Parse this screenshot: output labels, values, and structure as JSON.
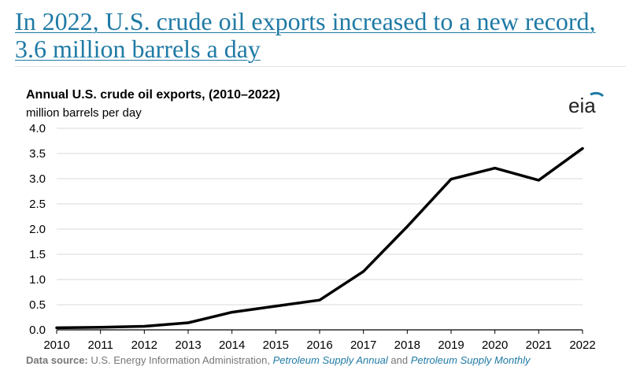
{
  "page": {
    "title": "In 2022, U.S. crude oil exports increased to a new record, 3.6 million barrels a day"
  },
  "chart_data": {
    "type": "line",
    "title": "Annual U.S. crude oil exports, (2010–2022)",
    "subtitle": "million barrels per day",
    "x": [
      "2010",
      "2011",
      "2012",
      "2013",
      "2014",
      "2015",
      "2016",
      "2017",
      "2018",
      "2019",
      "2020",
      "2021",
      "2022"
    ],
    "series": [
      {
        "values": [
          0.04,
          0.05,
          0.07,
          0.14,
          0.35,
          0.47,
          0.59,
          1.16,
          2.05,
          2.99,
          3.21,
          2.97,
          3.6
        ]
      }
    ],
    "ylim": [
      0,
      4
    ],
    "yticks": [
      "0.0",
      "0.5",
      "1.0",
      "1.5",
      "2.0",
      "2.5",
      "3.0",
      "3.5",
      "4.0"
    ],
    "grid": true,
    "line_color": "#000000",
    "grid_color": "#d9d9d9"
  },
  "logo": {
    "text": "eia",
    "accent": "#1f7aa5"
  },
  "source": {
    "label": "Data source:",
    "text1": " U.S. Energy Information Administration, ",
    "link1": "Petroleum Supply Annual",
    "text2": " and ",
    "link2": "Petroleum Supply Monthly"
  }
}
